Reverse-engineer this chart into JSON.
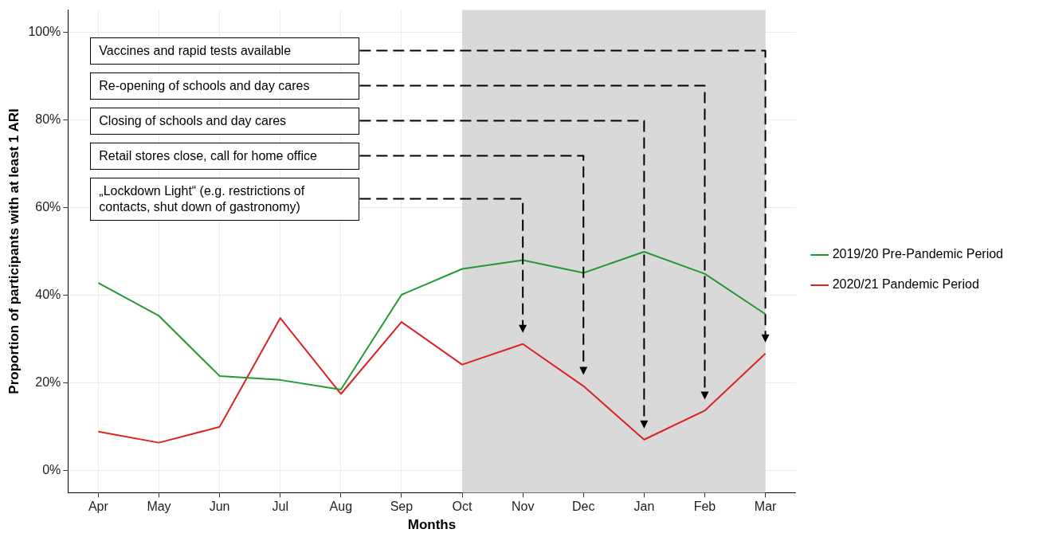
{
  "chart_data": {
    "type": "line",
    "xlabel": "Months",
    "ylabel": "Proportion of participants with at least 1 ARI",
    "categories": [
      "Apr",
      "May",
      "Jun",
      "Jul",
      "Aug",
      "Sep",
      "Oct",
      "Nov",
      "Dec",
      "Jan",
      "Feb",
      "Mar"
    ],
    "series": [
      {
        "name": "2019/20 Pre-Pandemic Period",
        "color": "#229933",
        "values": [
          42.8,
          35.3,
          21.6,
          20.7,
          18.5,
          40.1,
          46.0,
          48.0,
          45.1,
          49.9,
          44.9,
          35.7
        ]
      },
      {
        "name": "2020/21 Pandemic Period",
        "color": "#dd2222",
        "values": [
          8.9,
          6.4,
          10.0,
          34.8,
          17.5,
          33.9,
          24.2,
          28.9,
          19.3,
          7.1,
          13.7,
          26.7
        ]
      }
    ],
    "ylim": [
      -5,
      105
    ],
    "yticks": [
      {
        "value": 0,
        "label": "0%"
      },
      {
        "value": 20,
        "label": "20%"
      },
      {
        "value": 40,
        "label": "40%"
      },
      {
        "value": 60,
        "label": "60%"
      },
      {
        "value": 80,
        "label": "80%"
      },
      {
        "value": 100,
        "label": "100%"
      }
    ],
    "bands": [
      {
        "axis": "x",
        "from": "Oct",
        "to": "Mar",
        "color": "#d9d9d9"
      }
    ],
    "annotations": [
      "Vaccines and rapid tests available",
      "Re-opening of schools and day cares",
      "Closing of schools and day cares",
      "Retail stores close, call for home office",
      "„Lockdown Light“ (e.g. restrictions of contacts, shut down of gastronomy)"
    ],
    "grid": true,
    "legend": "right",
    "marker": "none",
    "line_style": "solid"
  }
}
